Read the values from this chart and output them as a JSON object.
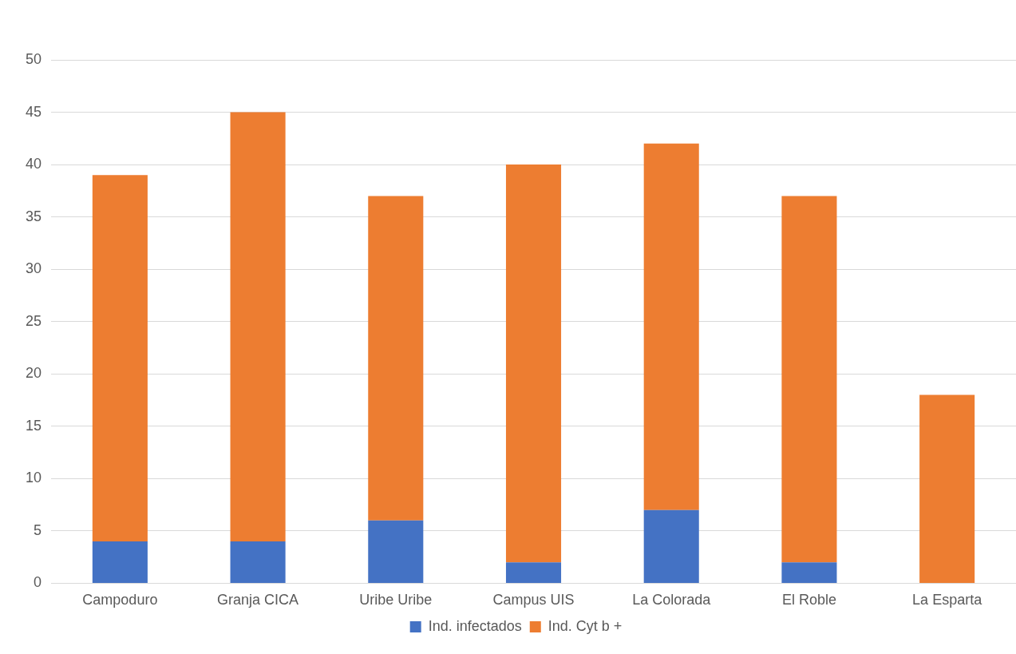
{
  "chart_data": {
    "type": "bar",
    "stacked": true,
    "categories": [
      "Campoduro",
      "Granja CICA",
      "Uribe Uribe",
      "Campus UIS",
      "La Colorada",
      "El Roble",
      "La Esparta"
    ],
    "series": [
      {
        "name": "Ind. infectados",
        "color": "#4472c4",
        "values": [
          4,
          4,
          6,
          2,
          7,
          2,
          0
        ]
      },
      {
        "name": "Ind. Cyt b +",
        "color": "#ed7d31",
        "values": [
          35,
          41,
          31,
          38,
          35,
          35,
          18
        ]
      }
    ],
    "ylim": [
      0,
      50
    ],
    "yticks": [
      0,
      5,
      10,
      15,
      20,
      25,
      30,
      35,
      40,
      45,
      50
    ],
    "grid": "y",
    "legend": "bottom"
  }
}
